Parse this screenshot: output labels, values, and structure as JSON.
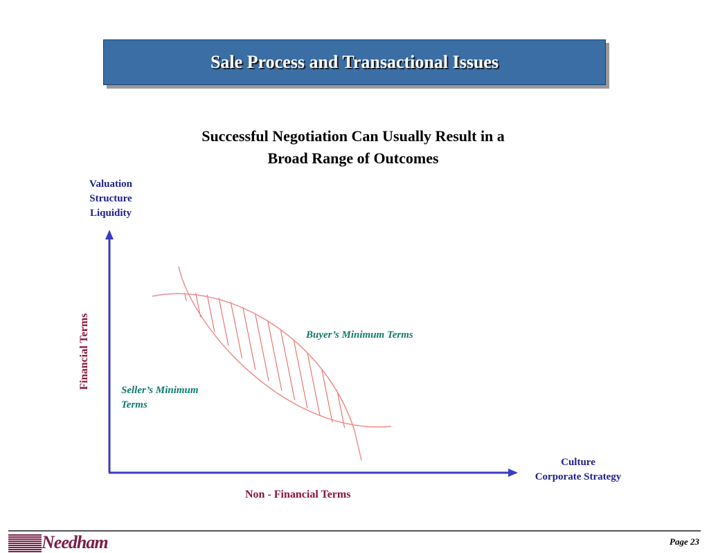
{
  "header": {
    "title": "Sale Process and Transactional Issues"
  },
  "subtitle": {
    "line1": "Successful Negotiation Can Usually Result in a",
    "line2": "Broad Range of Outcomes"
  },
  "diagram": {
    "y_axis_top_labels": [
      "Valuation",
      "Structure",
      "Liquidity"
    ],
    "y_axis_label": "Financial Terms",
    "x_axis_right_labels": [
      "Culture",
      "Corporate Strategy"
    ],
    "x_axis_label": "Non - Financial Terms",
    "buyer_label": "Buyer’s Minimum Terms",
    "seller_label_lines": [
      "Seller’s Minimum",
      "Terms"
    ],
    "colors": {
      "axis": "#3b3bc9",
      "curve": "#f08c8c",
      "hatch": "#e85a5a"
    }
  },
  "footer": {
    "logo": "Needham",
    "page": "Page 23"
  }
}
